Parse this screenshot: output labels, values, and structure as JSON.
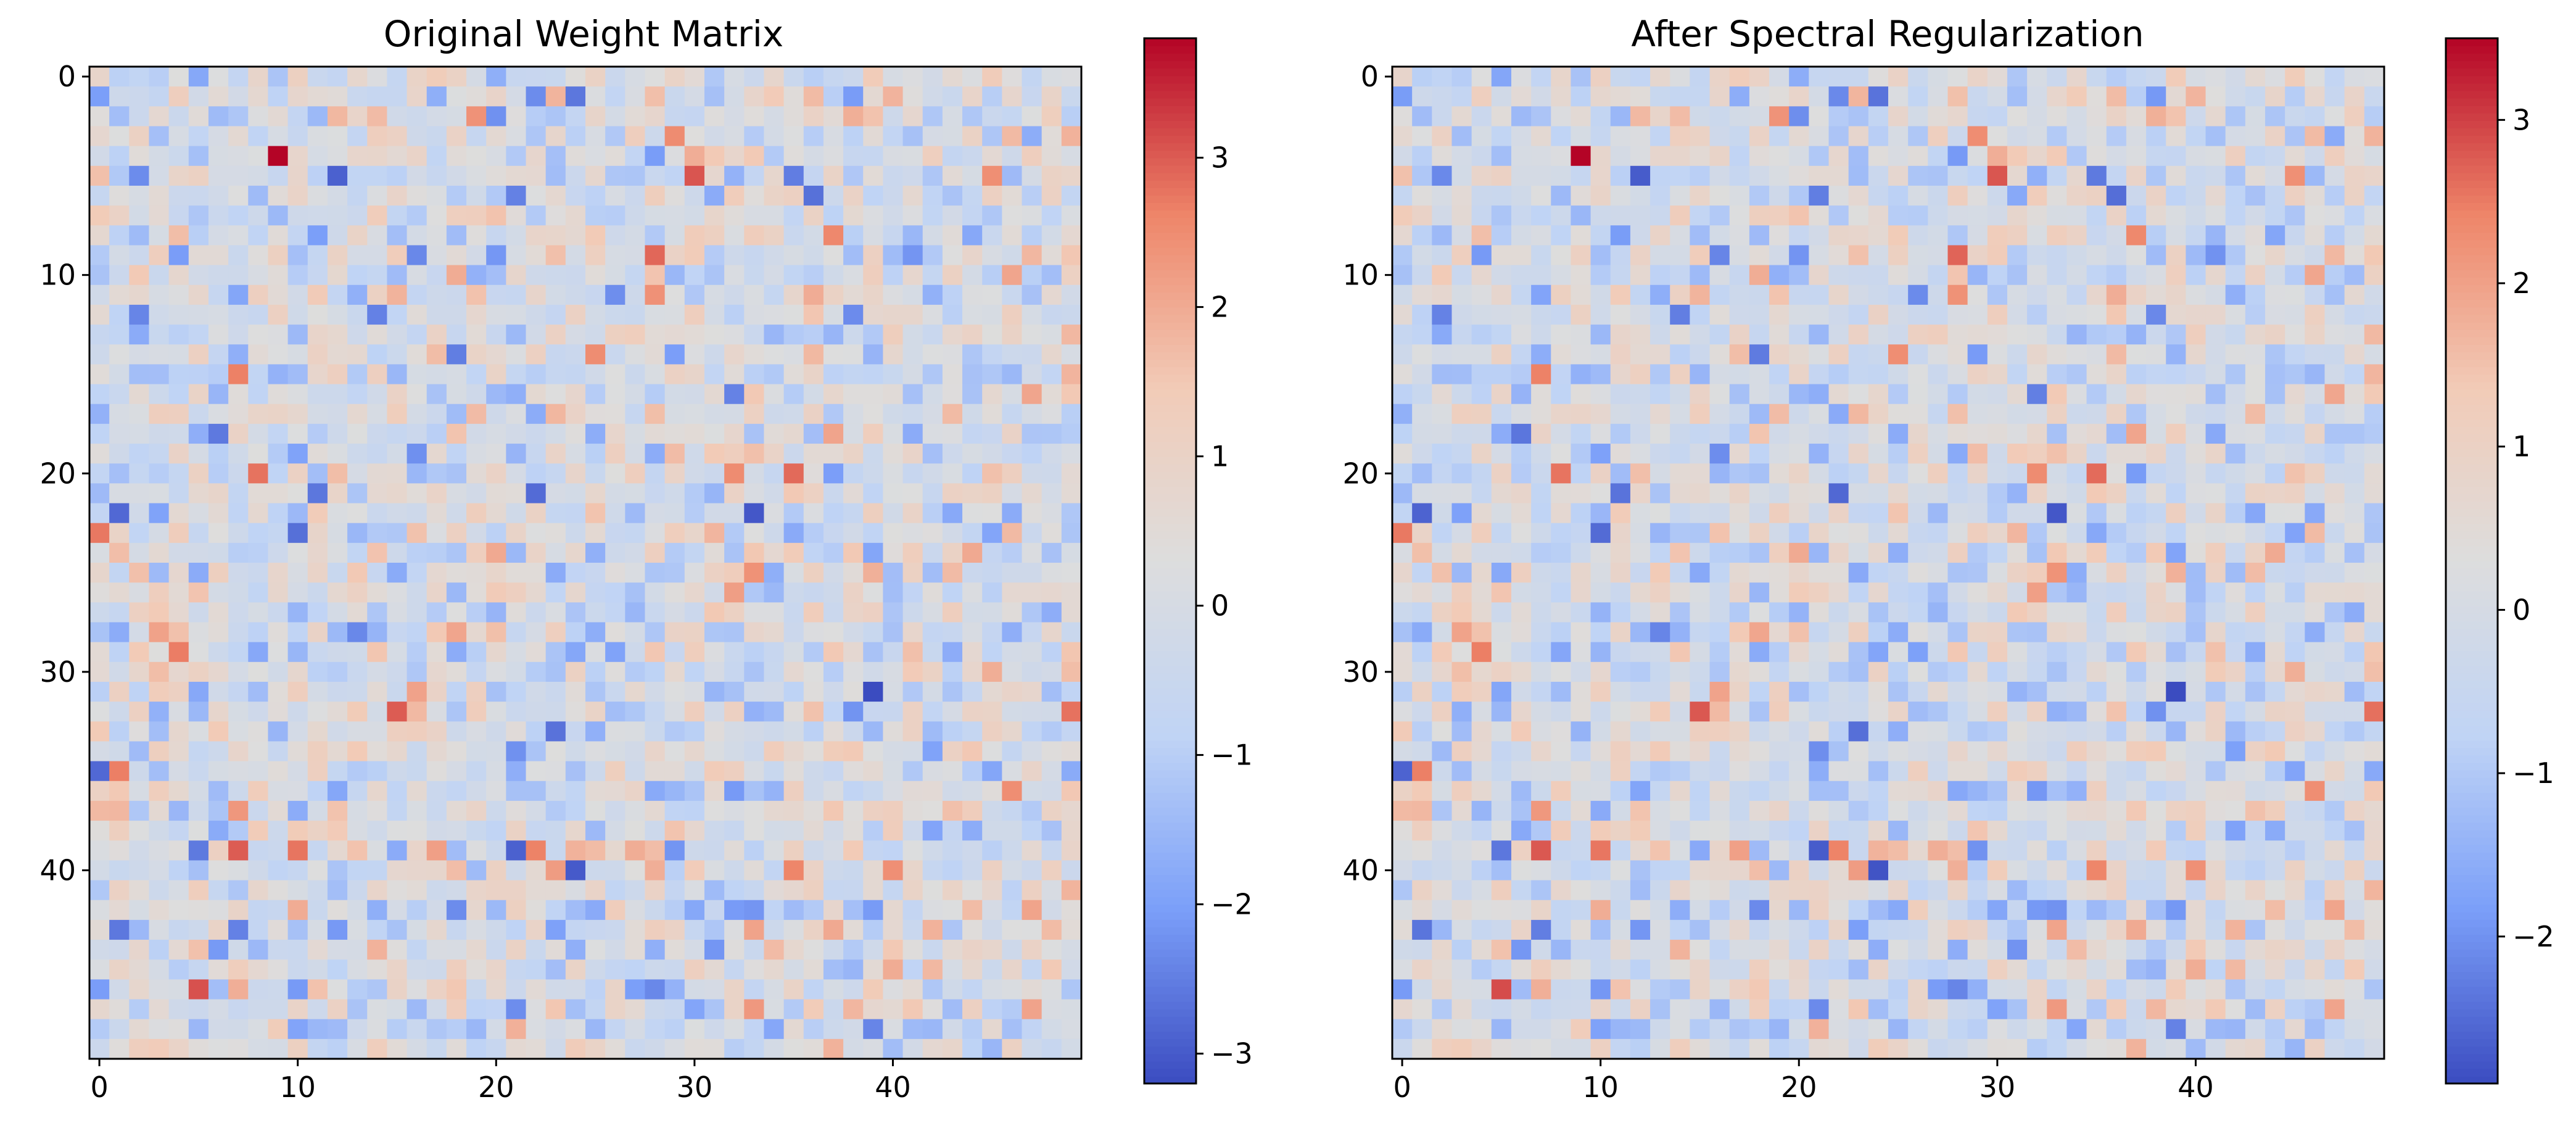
{
  "chart_data": [
    {
      "type": "heatmap",
      "title": "Original Weight Matrix",
      "xlabel": "",
      "ylabel": "",
      "matrix_size": [
        50,
        50
      ],
      "colormap": "coolwarm",
      "colormap_stops": [
        "#3b4cc0",
        "#7b9ff9",
        "#c0d4f5",
        "#dddddd",
        "#f2cbb7",
        "#ee8468",
        "#b40426"
      ],
      "value_range": [
        -3.2,
        3.8
      ],
      "x_ticks": [
        0,
        10,
        20,
        30,
        40
      ],
      "y_ticks": [
        0,
        10,
        20,
        30,
        40
      ],
      "colorbar_ticks": [
        -3,
        -2,
        -1,
        0,
        1,
        2,
        3
      ],
      "colorbar_tick_labels": [
        "−3",
        "−2",
        "−1",
        "0",
        "1",
        "2",
        "3"
      ],
      "grid": false,
      "highlighted_cells": [
        {
          "row": 4,
          "col": 9,
          "value": 3.8
        },
        {
          "row": 46,
          "col": 5,
          "value": 3.1
        },
        {
          "row": 39,
          "col": 7,
          "value": 3.0
        },
        {
          "row": 9,
          "col": 28,
          "value": 2.9
        },
        {
          "row": 32,
          "col": 15,
          "value": 3.0
        },
        {
          "row": 32,
          "col": 49,
          "value": 2.8
        },
        {
          "row": 40,
          "col": 35,
          "value": 2.6
        },
        {
          "row": 3,
          "col": 29,
          "value": 2.5
        },
        {
          "row": 5,
          "col": 12,
          "value": -2.9
        },
        {
          "row": 22,
          "col": 1,
          "value": -2.8
        },
        {
          "row": 23,
          "col": 10,
          "value": -2.7
        },
        {
          "row": 21,
          "col": 11,
          "value": -2.6
        },
        {
          "row": 31,
          "col": 39,
          "value": -3.2
        },
        {
          "row": 40,
          "col": 24,
          "value": -3.0
        },
        {
          "row": 39,
          "col": 21,
          "value": -2.9
        },
        {
          "row": 35,
          "col": 0,
          "value": -2.8
        },
        {
          "row": 1,
          "col": 24,
          "value": -2.6
        },
        {
          "row": 14,
          "col": 18,
          "value": -2.5
        },
        {
          "row": 48,
          "col": 39,
          "value": -2.4
        },
        {
          "row": 42,
          "col": 18,
          "value": -2.3
        }
      ]
    },
    {
      "type": "heatmap",
      "title": "After Spectral Regularization",
      "xlabel": "",
      "ylabel": "",
      "matrix_size": [
        50,
        50
      ],
      "colormap": "coolwarm",
      "colormap_stops": [
        "#3b4cc0",
        "#7b9ff9",
        "#c0d4f5",
        "#dddddd",
        "#f2cbb7",
        "#ee8468",
        "#b40426"
      ],
      "value_range": [
        -2.9,
        3.5
      ],
      "x_ticks": [
        0,
        10,
        20,
        30,
        40
      ],
      "y_ticks": [
        0,
        10,
        20,
        30,
        40
      ],
      "colorbar_ticks": [
        -2,
        -1,
        0,
        1,
        2,
        3
      ],
      "colorbar_tick_labels": [
        "−2",
        "−1",
        "0",
        "1",
        "2",
        "3"
      ],
      "grid": false,
      "highlighted_cells": [
        {
          "row": 4,
          "col": 9,
          "value": 3.5
        },
        {
          "row": 46,
          "col": 5,
          "value": 2.9
        },
        {
          "row": 39,
          "col": 7,
          "value": 2.8
        },
        {
          "row": 9,
          "col": 28,
          "value": 2.7
        },
        {
          "row": 32,
          "col": 15,
          "value": 2.8
        },
        {
          "row": 32,
          "col": 49,
          "value": 2.6
        },
        {
          "row": 40,
          "col": 35,
          "value": 2.4
        },
        {
          "row": 3,
          "col": 29,
          "value": 2.3
        },
        {
          "row": 5,
          "col": 12,
          "value": -2.7
        },
        {
          "row": 22,
          "col": 1,
          "value": -2.6
        },
        {
          "row": 23,
          "col": 10,
          "value": -2.5
        },
        {
          "row": 21,
          "col": 11,
          "value": -2.4
        },
        {
          "row": 31,
          "col": 39,
          "value": -2.9
        },
        {
          "row": 40,
          "col": 24,
          "value": -2.8
        },
        {
          "row": 39,
          "col": 21,
          "value": -2.7
        },
        {
          "row": 35,
          "col": 0,
          "value": -2.6
        },
        {
          "row": 1,
          "col": 24,
          "value": -2.4
        },
        {
          "row": 14,
          "col": 18,
          "value": -2.3
        },
        {
          "row": 48,
          "col": 39,
          "value": -2.2
        },
        {
          "row": 42,
          "col": 18,
          "value": -2.1
        }
      ]
    }
  ]
}
